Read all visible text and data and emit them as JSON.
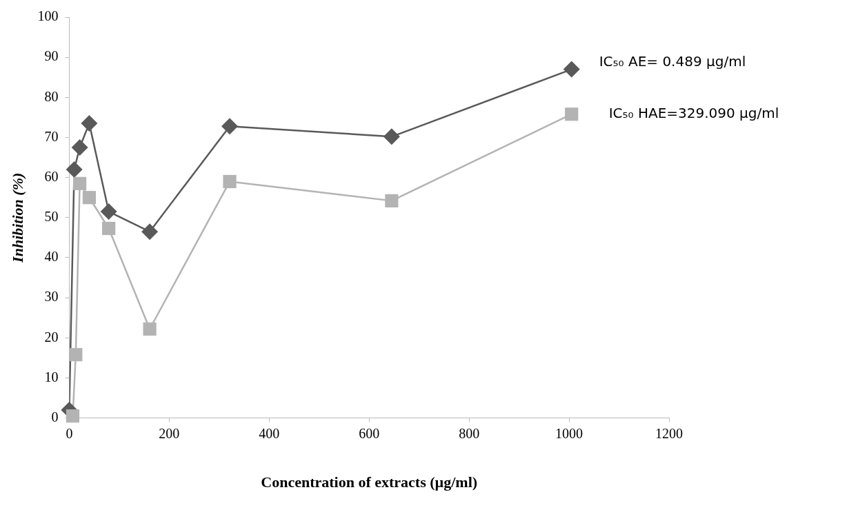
{
  "chart_data": {
    "type": "line",
    "xlabel": "Concentration of extracts (µg/ml)",
    "ylabel": "Inhibition (%)",
    "xlim": [
      0,
      1200
    ],
    "xticks": [
      0,
      200,
      400,
      600,
      800,
      1000,
      1200
    ],
    "ylim": [
      0,
      100
    ],
    "yticks": [
      0,
      10,
      20,
      30,
      40,
      50,
      60,
      70,
      80,
      90,
      100
    ],
    "grid": false,
    "legend": false,
    "series": [
      {
        "name": "IC₅₀ AE= 0.489 µg/ml",
        "color": "#595959",
        "marker": "diamond",
        "x": [
          0,
          10,
          21,
          40,
          79,
          161,
          321,
          645,
          1005
        ],
        "values": [
          2,
          62,
          67.5,
          73.5,
          51.5,
          46.5,
          72.8,
          70.2,
          87
        ]
      },
      {
        "name": "IC₅₀ HAE=329.090 µg/ml",
        "color": "#b3b3b3",
        "marker": "square",
        "x": [
          7,
          13,
          21,
          40,
          79,
          161,
          321,
          645,
          1005
        ],
        "values": [
          0.5,
          15.8,
          58.5,
          55,
          47.3,
          22.2,
          59,
          54.2,
          75.8
        ]
      }
    ]
  }
}
